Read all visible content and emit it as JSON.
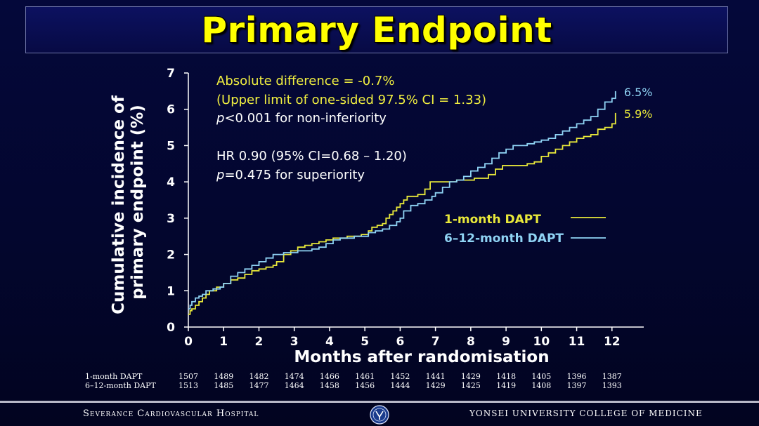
{
  "slide": {
    "title": "Primary Endpoint",
    "footer_left": "Severance Cardiovascular Hospital",
    "footer_right": "YONSEI UNIVERSITY COLLEGE OF MEDICINE",
    "logo_icon": "university-seal-icon"
  },
  "annotations": {
    "line1": "Absolute difference = -0.7%",
    "line2": "(Upper limit of one-sided 97.5% CI = 1.33)",
    "line3_italic": "p",
    "line3_rest": "<0.001 for non-inferiority",
    "line4": "HR 0.90 (95% CI=0.68 – 1.20)",
    "line5_italic": "p",
    "line5_rest": "=0.475 for superiority"
  },
  "chart_data": {
    "type": "line",
    "title": "Primary Endpoint",
    "xlabel": "Months after randomisation",
    "ylabel": "Cumulative incidence of primary endpoint (%)",
    "ylabel_lines": [
      "Cumulative incidence of",
      "primary endpoint (%)"
    ],
    "xlim": [
      0,
      12.9
    ],
    "ylim": [
      0,
      7
    ],
    "xticks": [
      0,
      1,
      2,
      3,
      4,
      5,
      6,
      7,
      8,
      9,
      10,
      11,
      12
    ],
    "yticks": [
      0,
      1,
      2,
      3,
      4,
      5,
      6,
      7
    ],
    "legend_position": "right",
    "series": [
      {
        "name": "1-month DAPT",
        "color": "#e8e83a",
        "end_label": "5.9%",
        "x": [
          0,
          0.05,
          0.1,
          0.2,
          0.3,
          0.4,
          0.5,
          0.6,
          0.8,
          1.0,
          1.2,
          1.4,
          1.6,
          1.8,
          2.0,
          2.2,
          2.4,
          2.5,
          2.7,
          2.9,
          3.1,
          3.3,
          3.5,
          3.7,
          3.9,
          4.1,
          4.3,
          4.5,
          4.7,
          4.9,
          5.1,
          5.2,
          5.35,
          5.5,
          5.6,
          5.7,
          5.8,
          5.9,
          6.0,
          6.1,
          6.2,
          6.3,
          6.5,
          6.7,
          6.85,
          7.0,
          7.3,
          7.6,
          7.9,
          8.1,
          8.3,
          8.5,
          8.7,
          8.9,
          9.1,
          9.4,
          9.6,
          9.8,
          10.0,
          10.2,
          10.4,
          10.6,
          10.8,
          11.0,
          11.2,
          11.4,
          11.6,
          11.8,
          12.0,
          12.1
        ],
        "y": [
          0.35,
          0.45,
          0.5,
          0.6,
          0.7,
          0.8,
          0.9,
          1.0,
          1.1,
          1.2,
          1.3,
          1.35,
          1.45,
          1.55,
          1.6,
          1.65,
          1.7,
          1.8,
          2.0,
          2.1,
          2.2,
          2.25,
          2.3,
          2.35,
          2.4,
          2.45,
          2.45,
          2.5,
          2.5,
          2.55,
          2.65,
          2.75,
          2.8,
          2.85,
          3.0,
          3.1,
          3.2,
          3.3,
          3.4,
          3.5,
          3.6,
          3.6,
          3.65,
          3.8,
          4.0,
          4.0,
          4.0,
          4.05,
          4.05,
          4.1,
          4.1,
          4.2,
          4.35,
          4.45,
          4.45,
          4.45,
          4.5,
          4.55,
          4.7,
          4.8,
          4.9,
          5.0,
          5.1,
          5.2,
          5.25,
          5.3,
          5.45,
          5.5,
          5.6,
          5.9
        ]
      },
      {
        "name": "6–12-month DAPT",
        "color": "#8fd3f4",
        "end_label": "6.5%",
        "x": [
          0,
          0.05,
          0.1,
          0.2,
          0.3,
          0.4,
          0.5,
          0.7,
          0.9,
          1.0,
          1.2,
          1.4,
          1.6,
          1.8,
          2.0,
          2.2,
          2.4,
          2.5,
          2.7,
          2.9,
          3.1,
          3.3,
          3.5,
          3.7,
          3.9,
          4.1,
          4.3,
          4.5,
          4.7,
          4.9,
          5.1,
          5.3,
          5.5,
          5.7,
          5.9,
          6.0,
          6.1,
          6.3,
          6.5,
          6.7,
          6.9,
          7.0,
          7.2,
          7.4,
          7.6,
          7.8,
          8.0,
          8.2,
          8.4,
          8.6,
          8.8,
          9.0,
          9.2,
          9.4,
          9.6,
          9.8,
          10.0,
          10.2,
          10.4,
          10.6,
          10.8,
          11.0,
          11.2,
          11.4,
          11.6,
          11.8,
          12.0,
          12.1
        ],
        "y": [
          0.5,
          0.6,
          0.7,
          0.8,
          0.85,
          0.9,
          1.0,
          1.05,
          1.1,
          1.2,
          1.4,
          1.5,
          1.6,
          1.7,
          1.8,
          1.9,
          2.0,
          2.0,
          2.05,
          2.05,
          2.1,
          2.1,
          2.15,
          2.2,
          2.3,
          2.4,
          2.45,
          2.45,
          2.5,
          2.5,
          2.6,
          2.65,
          2.7,
          2.8,
          2.9,
          3.0,
          3.2,
          3.35,
          3.4,
          3.5,
          3.6,
          3.7,
          3.85,
          4.0,
          4.05,
          4.15,
          4.3,
          4.4,
          4.5,
          4.65,
          4.8,
          4.9,
          5.0,
          5.0,
          5.05,
          5.1,
          5.15,
          5.2,
          5.3,
          5.4,
          5.5,
          5.6,
          5.7,
          5.8,
          6.0,
          6.2,
          6.3,
          6.5
        ]
      }
    ]
  },
  "at_risk": {
    "rows": [
      {
        "label": "1-month DAPT",
        "values": [
          "1507",
          "1489",
          "1482",
          "1474",
          "1466",
          "1461",
          "1452",
          "1441",
          "1429",
          "1418",
          "1405",
          "1396",
          "1387"
        ]
      },
      {
        "label": "6–12-month DAPT",
        "values": [
          "1513",
          "1485",
          "1477",
          "1464",
          "1458",
          "1456",
          "1444",
          "1429",
          "1425",
          "1419",
          "1408",
          "1397",
          "1393"
        ]
      }
    ]
  }
}
